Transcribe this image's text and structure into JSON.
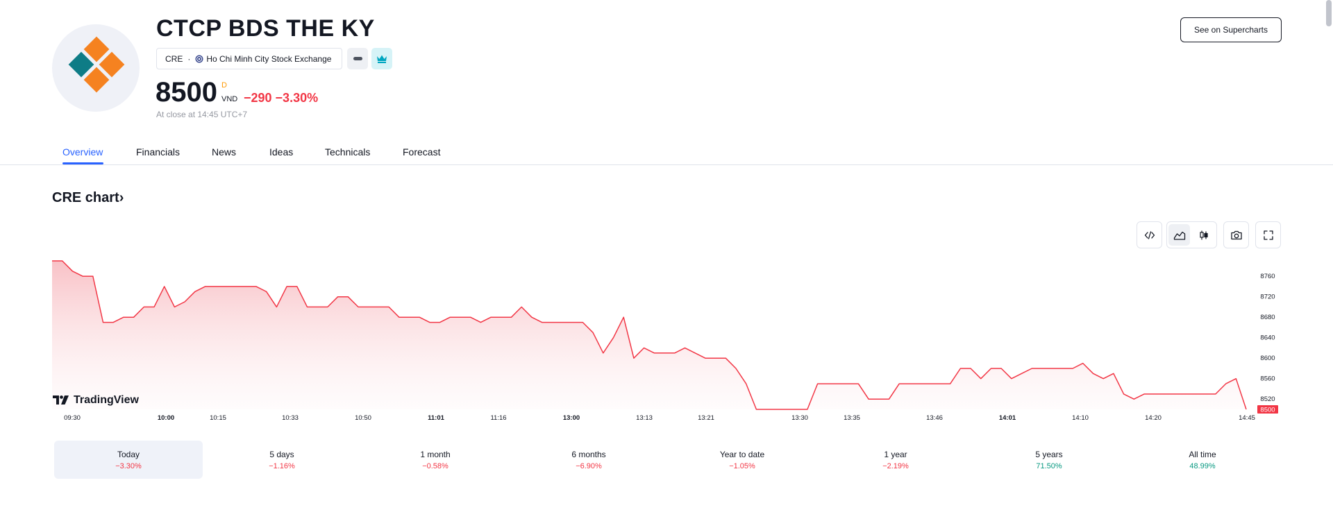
{
  "header": {
    "company_name": "CTCP BDS THE KY",
    "ticker": "CRE",
    "separator": "·",
    "exchange": "Ho Chi Minh City Stock Exchange",
    "price": "8500",
    "price_flag": "D",
    "currency": "VND",
    "change": "−290 −3.30%",
    "close_note": "At close at 14:45 UTC+7",
    "supercharts_label": "See on Supercharts"
  },
  "tabs": [
    {
      "label": "Overview",
      "active": true
    },
    {
      "label": "Financials",
      "active": false
    },
    {
      "label": "News",
      "active": false
    },
    {
      "label": "Ideas",
      "active": false
    },
    {
      "label": "Technicals",
      "active": false
    },
    {
      "label": "Forecast",
      "active": false
    }
  ],
  "section": {
    "title": "CRE chart",
    "arrow": "›"
  },
  "chart_toolbar": [
    {
      "icon": "embed-code-icon",
      "active": false
    },
    {
      "icon": "area-chart-icon",
      "active": true
    },
    {
      "icon": "candles-chart-icon",
      "active": false
    },
    {
      "icon": "camera-icon",
      "active": false
    },
    {
      "icon": "fullscreen-icon",
      "active": false
    }
  ],
  "branding": {
    "name": "TradingView"
  },
  "colors": {
    "line": "#f23645",
    "area_top": "#f7b6bc",
    "negative": "#f23645",
    "positive": "#089981",
    "accent": "#2962ff"
  },
  "chart_data": {
    "type": "area",
    "x_ticks": [
      {
        "label": "09:30",
        "bold": false
      },
      {
        "label": "10:00",
        "bold": true
      },
      {
        "label": "10:15",
        "bold": false
      },
      {
        "label": "10:33",
        "bold": false
      },
      {
        "label": "10:50",
        "bold": false
      },
      {
        "label": "11:01",
        "bold": true
      },
      {
        "label": "11:16",
        "bold": false
      },
      {
        "label": "13:00",
        "bold": true
      },
      {
        "label": "13:13",
        "bold": false
      },
      {
        "label": "13:21",
        "bold": false
      },
      {
        "label": "13:30",
        "bold": false
      },
      {
        "label": "13:35",
        "bold": false
      },
      {
        "label": "13:46",
        "bold": false
      },
      {
        "label": "14:01",
        "bold": true
      },
      {
        "label": "14:10",
        "bold": false
      },
      {
        "label": "14:20",
        "bold": false
      },
      {
        "label": "14:45",
        "bold": false
      }
    ],
    "y_ticks": [
      8760,
      8720,
      8680,
      8640,
      8600,
      8560,
      8520
    ],
    "ylim": [
      8500,
      8790
    ],
    "last_value": 8500,
    "values": [
      8790,
      8790,
      8770,
      8760,
      8760,
      8670,
      8670,
      8680,
      8680,
      8700,
      8700,
      8740,
      8700,
      8710,
      8730,
      8740,
      8740,
      8740,
      8740,
      8740,
      8740,
      8730,
      8700,
      8740,
      8740,
      8700,
      8700,
      8700,
      8720,
      8720,
      8700,
      8700,
      8700,
      8700,
      8680,
      8680,
      8680,
      8670,
      8670,
      8680,
      8680,
      8680,
      8670,
      8680,
      8680,
      8680,
      8700,
      8680,
      8670,
      8670,
      8670,
      8670,
      8670,
      8650,
      8610,
      8640,
      8680,
      8600,
      8620,
      8610,
      8610,
      8610,
      8620,
      8610,
      8600,
      8600,
      8600,
      8580,
      8550,
      8500,
      8500,
      8500,
      8500,
      8500,
      8500,
      8550,
      8550,
      8550,
      8550,
      8550,
      8520,
      8520,
      8520,
      8550,
      8550,
      8550,
      8550,
      8550,
      8550,
      8580,
      8580,
      8560,
      8580,
      8580,
      8560,
      8570,
      8580,
      8580,
      8580,
      8580,
      8580,
      8590,
      8570,
      8560,
      8570,
      8530,
      8520,
      8530,
      8530,
      8530,
      8530,
      8530,
      8530,
      8530,
      8530,
      8550,
      8560,
      8500
    ]
  },
  "periods": [
    {
      "label": "Today",
      "value": "−3.30%",
      "trend": "neg",
      "active": true
    },
    {
      "label": "5 days",
      "value": "−1.16%",
      "trend": "neg",
      "active": false
    },
    {
      "label": "1 month",
      "value": "−0.58%",
      "trend": "neg",
      "active": false
    },
    {
      "label": "6 months",
      "value": "−6.90%",
      "trend": "neg",
      "active": false
    },
    {
      "label": "Year to date",
      "value": "−1.05%",
      "trend": "neg",
      "active": false
    },
    {
      "label": "1 year",
      "value": "−2.19%",
      "trend": "neg",
      "active": false
    },
    {
      "label": "5 years",
      "value": "71.50%",
      "trend": "pos",
      "active": false
    },
    {
      "label": "All time",
      "value": "48.99%",
      "trend": "pos",
      "active": false
    }
  ]
}
